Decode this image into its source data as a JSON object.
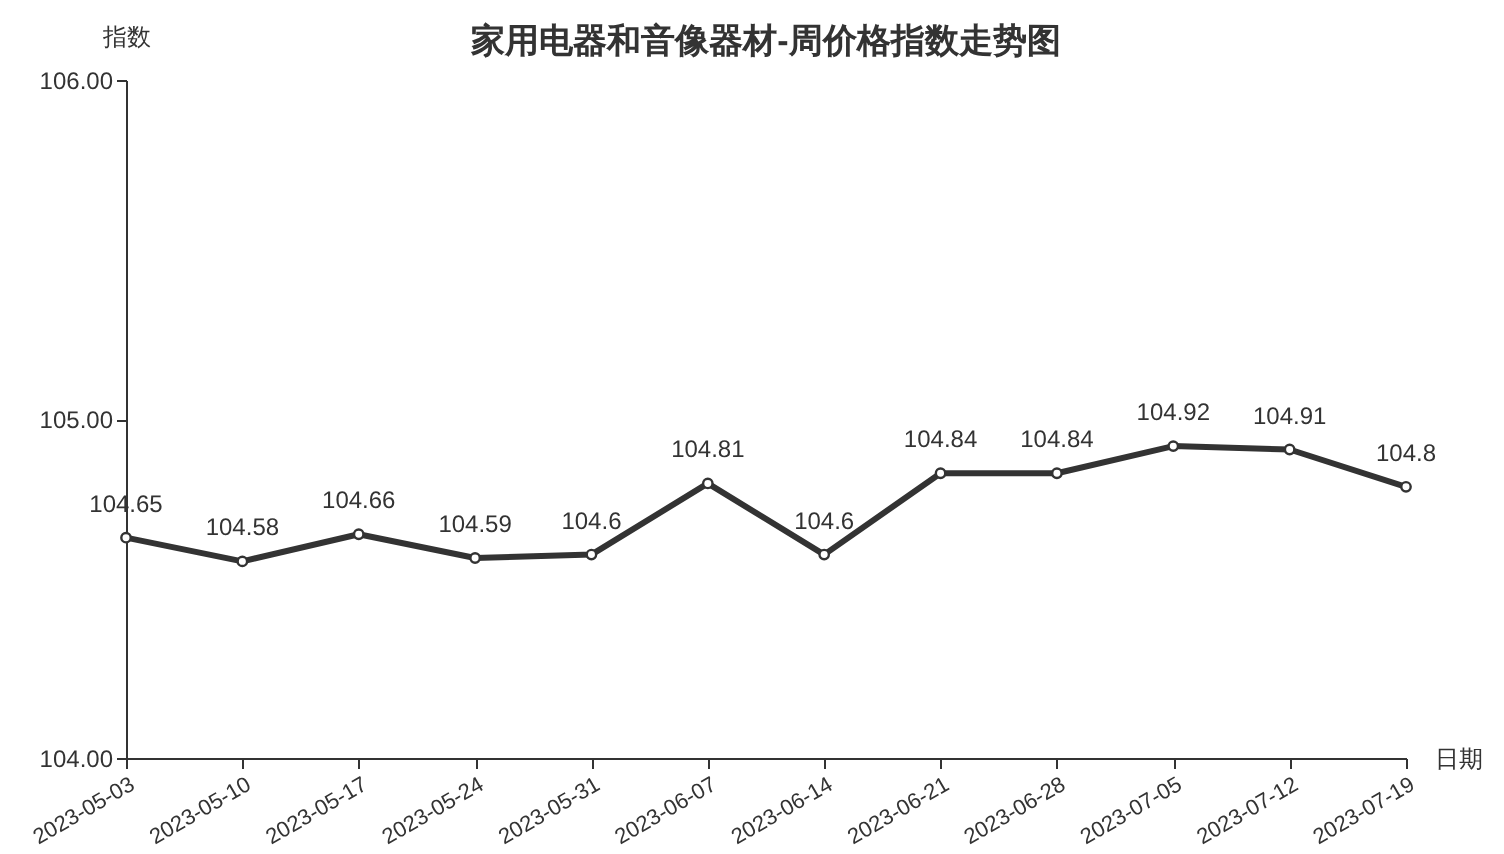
{
  "chart_data": {
    "type": "line",
    "title": "家用电器和音像器材-周价格指数走势图",
    "xlabel": "日期",
    "ylabel": "指数",
    "categories": [
      "2023-05-03",
      "2023-05-10",
      "2023-05-17",
      "2023-05-24",
      "2023-05-31",
      "2023-06-07",
      "2023-06-14",
      "2023-06-21",
      "2023-06-28",
      "2023-07-05",
      "2023-07-12",
      "2023-07-19"
    ],
    "series": [
      {
        "color": "#333333",
        "values": [
          104.65,
          104.58,
          104.66,
          104.59,
          104.6,
          104.81,
          104.6,
          104.84,
          104.84,
          104.92,
          104.91,
          104.8
        ]
      }
    ],
    "ylim": [
      104,
      106
    ],
    "yticks": [
      {
        "value": 104,
        "label": "104.00"
      },
      {
        "value": 105,
        "label": "105.00"
      },
      {
        "value": 106,
        "label": "106.00"
      }
    ],
    "grid": false,
    "legend": false,
    "marker": "circle",
    "line_style": "solid",
    "data_labels": true
  }
}
